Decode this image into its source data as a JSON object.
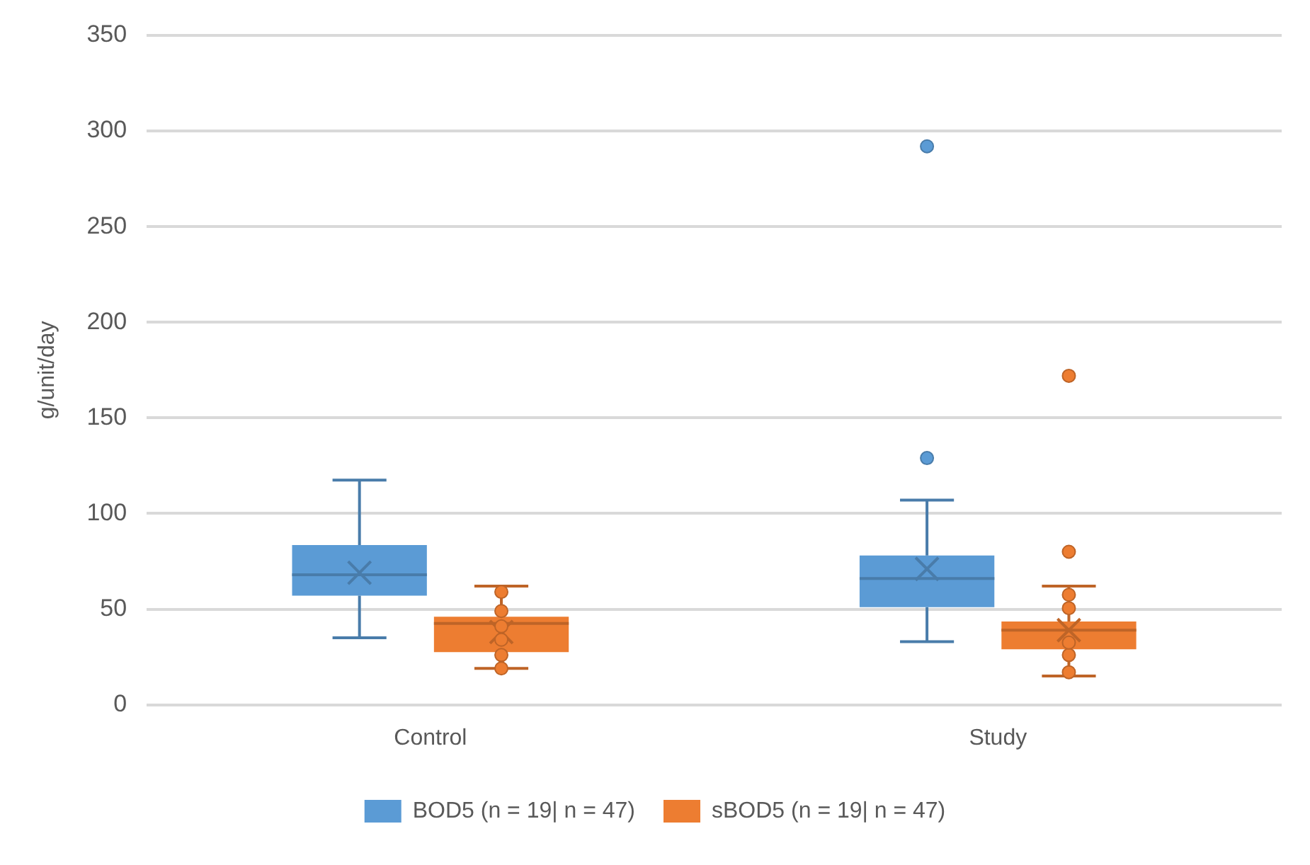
{
  "chart_data": {
    "type": "box",
    "ylabel": "g/unit/day",
    "categories": [
      "Control",
      "Study"
    ],
    "ylim": [
      0,
      350
    ],
    "yticks": [
      0,
      50,
      100,
      150,
      200,
      250,
      300,
      350
    ],
    "grid": "y",
    "legend": "bottom",
    "marker": "circle",
    "series": [
      {
        "name": "BOD5 (n = 19| n = 47)",
        "color": "#5b9bd5",
        "boxes": [
          {
            "low": 35,
            "q1": 57,
            "median": 68,
            "q3": 83.5,
            "high": 117.5,
            "mean": 69
          },
          {
            "low": 33,
            "q1": 51,
            "median": 66,
            "q3": 78,
            "high": 107,
            "mean": 71,
            "outliers": [
              129,
              292
            ]
          }
        ]
      },
      {
        "name": "sBOD5 (n = 19| n = 47)",
        "color": "#ed7d31",
        "boxes": [
          {
            "low": 19,
            "q1": 27.5,
            "median": 42.5,
            "q3": 46,
            "high": 62,
            "mean": 38,
            "outliers": [
              59,
              49,
              41,
              34,
              26,
              19
            ]
          },
          {
            "low": 15,
            "q1": 29,
            "median": 39,
            "q3": 43.5,
            "high": 62,
            "mean": 39,
            "outliers": [
              17,
              26,
              32.5,
              50.5,
              57.5,
              80,
              172
            ]
          }
        ]
      }
    ]
  }
}
